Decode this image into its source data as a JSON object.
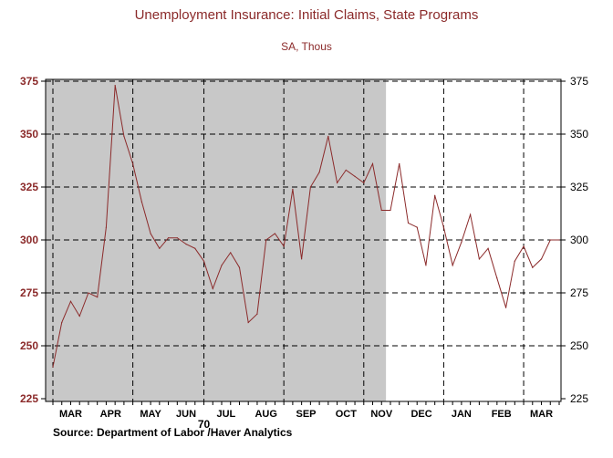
{
  "chart_data": {
    "type": "line",
    "title": "Unemployment Insurance: Initial Claims, State Programs",
    "subtitle": "SA, Thous",
    "source": "Source:  Department of Labor /Haver Analytics",
    "year_label": "70",
    "ylim": [
      225,
      375
    ],
    "yticks": [
      225,
      250,
      275,
      300,
      325,
      350,
      375
    ],
    "ytick_labels": [
      "225",
      "250",
      "275",
      "300",
      "325",
      "350",
      "375"
    ],
    "x_range": [
      0,
      57
    ],
    "month_labels": [
      {
        "label": "MAR",
        "week": 2
      },
      {
        "label": "APR",
        "week": 6.5
      },
      {
        "label": "MAY",
        "week": 11
      },
      {
        "label": "JUN",
        "week": 15
      },
      {
        "label": "JUL",
        "week": 19.5
      },
      {
        "label": "AUG",
        "week": 24
      },
      {
        "label": "SEP",
        "week": 28.5
      },
      {
        "label": "OCT",
        "week": 33
      },
      {
        "label": "NOV",
        "week": 37
      },
      {
        "label": "DEC",
        "week": 41.5
      },
      {
        "label": "JAN",
        "week": 46
      },
      {
        "label": "FEB",
        "week": 50.5
      },
      {
        "label": "MAR",
        "week": 55
      }
    ],
    "vgrid_weeks": [
      0,
      9,
      17,
      26,
      35,
      44,
      53
    ],
    "shaded_range_weeks": [
      0,
      37.5
    ],
    "grid": true,
    "line_color": "#8b2a2a",
    "shade_color": "#c8c8c8",
    "series": [
      {
        "x": [
          0,
          1,
          2,
          3,
          4,
          5,
          6,
          7,
          8,
          9,
          10,
          11,
          12,
          13,
          14,
          15,
          16,
          17,
          18,
          19,
          20,
          21,
          22,
          23,
          24,
          25,
          26,
          27,
          28,
          29,
          30,
          31,
          32,
          33,
          34,
          35,
          36,
          37,
          38,
          39,
          40,
          41,
          42,
          43,
          44,
          45,
          46,
          47,
          48,
          49,
          50,
          51,
          52,
          53,
          54,
          55,
          56,
          57
        ],
        "values": [
          240,
          261,
          271,
          264,
          275,
          273,
          306,
          373,
          349,
          336,
          318,
          303,
          296,
          301,
          301,
          298,
          296,
          290,
          277,
          288,
          294,
          287,
          261,
          265,
          300,
          303,
          297,
          324,
          291,
          325,
          332,
          349,
          327,
          333,
          330,
          327,
          336,
          314,
          314,
          336,
          308,
          306,
          288,
          321,
          306,
          288,
          299,
          312,
          291,
          296,
          282,
          268,
          290,
          297,
          287,
          291,
          300,
          300
        ]
      }
    ]
  }
}
